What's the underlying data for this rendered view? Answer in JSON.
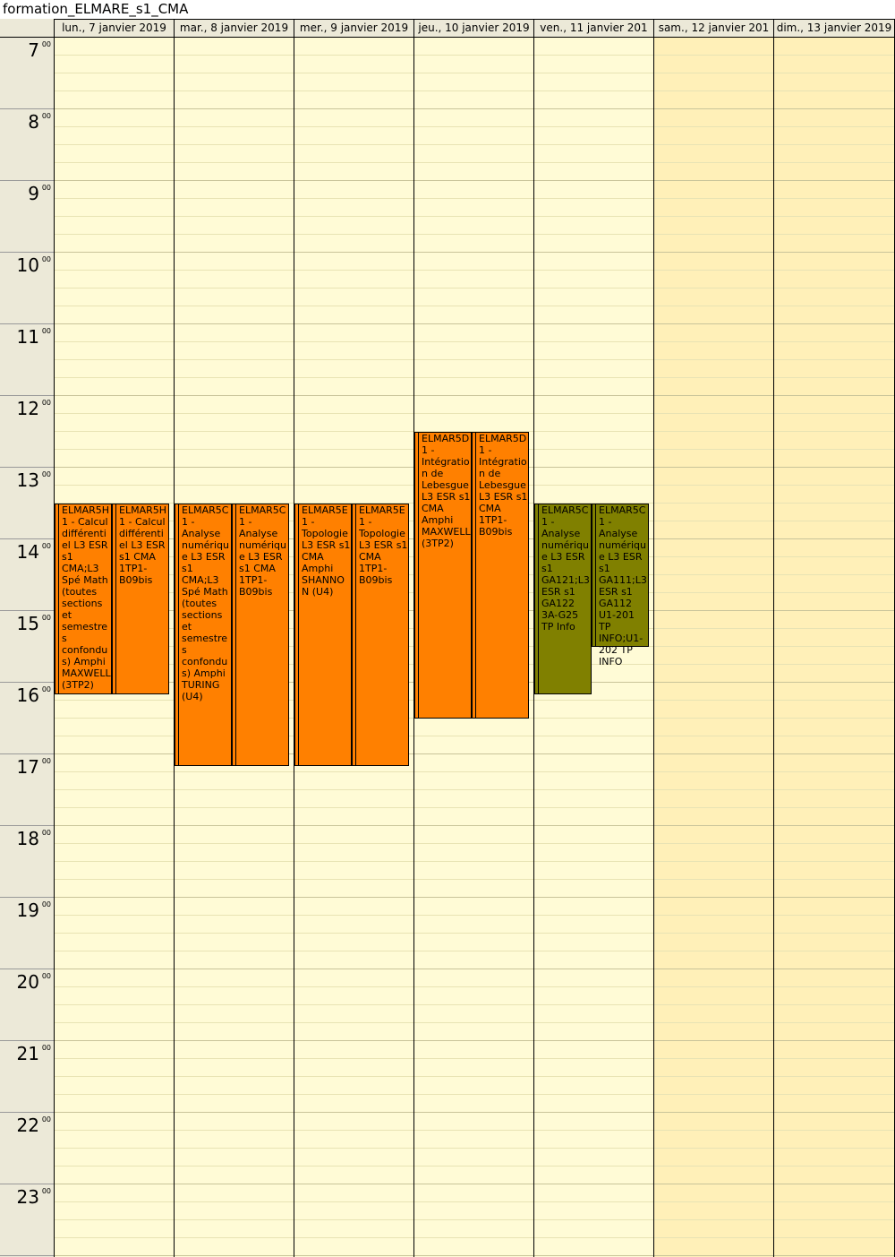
{
  "window_title": "formation_ELMARE_s1_CMA",
  "days": [
    {
      "label": "lun., 7 janvier 2019"
    },
    {
      "label": "mar., 8 janvier 2019"
    },
    {
      "label": "mer., 9 janvier 2019"
    },
    {
      "label": "jeu., 10 janvier 2019"
    },
    {
      "label": "ven., 11 janvier 201"
    },
    {
      "label": "sam., 12 janvier 201"
    },
    {
      "label": "dim., 13 janvier 2019"
    }
  ],
  "hours": [
    {
      "hour": "7",
      "minutes": "00"
    },
    {
      "hour": "8",
      "minutes": "00"
    },
    {
      "hour": "9",
      "minutes": "00"
    },
    {
      "hour": "10",
      "minutes": "00"
    },
    {
      "hour": "11",
      "minutes": "00"
    },
    {
      "hour": "12",
      "minutes": "00"
    },
    {
      "hour": "13",
      "minutes": "00"
    },
    {
      "hour": "14",
      "minutes": "00"
    },
    {
      "hour": "15",
      "minutes": "00"
    },
    {
      "hour": "16",
      "minutes": "00"
    },
    {
      "hour": "17",
      "minutes": "00"
    },
    {
      "hour": "18",
      "minutes": "00"
    },
    {
      "hour": "19",
      "minutes": "00"
    },
    {
      "hour": "20",
      "minutes": "00"
    },
    {
      "hour": "21",
      "minutes": "00"
    },
    {
      "hour": "22",
      "minutes": "00"
    },
    {
      "hour": "23",
      "minutes": "00"
    }
  ],
  "colors": {
    "course": "#ff8000",
    "tp": "#808000",
    "weekday": "#fffbd6",
    "weekend": "#fff0b8",
    "header": "#ece9d8"
  },
  "events": [
    {
      "day": 0,
      "lane": 0,
      "start": "13:30",
      "end": "16:10",
      "color": "course",
      "text": "ELMAR5H1 - Calcul différentiel L3 ESR s1 CMA;L3 Spé Math (toutes sections et semestres confondus) Amphi MAXWELL (3TP2)"
    },
    {
      "day": 0,
      "lane": 1,
      "start": "13:30",
      "end": "16:10",
      "color": "course",
      "text": "ELMAR5H1 - Calcul différentiel L3 ESR s1 CMA 1TP1-B09bis"
    },
    {
      "day": 1,
      "lane": 0,
      "start": "13:30",
      "end": "17:10",
      "color": "course",
      "text": "ELMAR5C1 - Analyse numérique L3 ESR s1 CMA;L3 Spé Math (toutes sections et semestres confondus) Amphi TURING (U4)"
    },
    {
      "day": 1,
      "lane": 1,
      "start": "13:30",
      "end": "17:10",
      "color": "course",
      "text": "ELMAR5C1 - Analyse numérique L3 ESR s1 CMA 1TP1-B09bis"
    },
    {
      "day": 2,
      "lane": 0,
      "start": "13:30",
      "end": "17:10",
      "color": "course",
      "text": "ELMAR5E1 - Topologie L3 ESR s1 CMA Amphi SHANNON (U4)"
    },
    {
      "day": 2,
      "lane": 1,
      "start": "13:30",
      "end": "17:10",
      "color": "course",
      "text": "ELMAR5E1 - Topologie L3 ESR s1 CMA 1TP1-B09bis"
    },
    {
      "day": 3,
      "lane": 0,
      "start": "12:30",
      "end": "16:30",
      "color": "course",
      "text": "ELMAR5D1 - Intégration de Lebesgue L3 ESR s1 CMA Amphi MAXWELL (3TP2)"
    },
    {
      "day": 3,
      "lane": 1,
      "start": "12:30",
      "end": "16:30",
      "color": "course",
      "text": "ELMAR5D1 - Intégration de Lebesgue L3 ESR s1 CMA 1TP1-B09bis"
    },
    {
      "day": 4,
      "lane": 0,
      "start": "13:30",
      "end": "16:10",
      "color": "tp",
      "text": "ELMAR5C1 - Analyse numérique L3 ESR s1 GA121;L3 ESR s1 GA122 3A-G25 TP Info"
    },
    {
      "day": 4,
      "lane": 1,
      "start": "13:30",
      "end": "15:30",
      "color": "tp",
      "text": "ELMAR5C1 - Analyse numérique L3 ESR s1 GA111;L3 ESR s1 GA112 U1-201 TP INFO;U1-202 TP INFO"
    }
  ]
}
